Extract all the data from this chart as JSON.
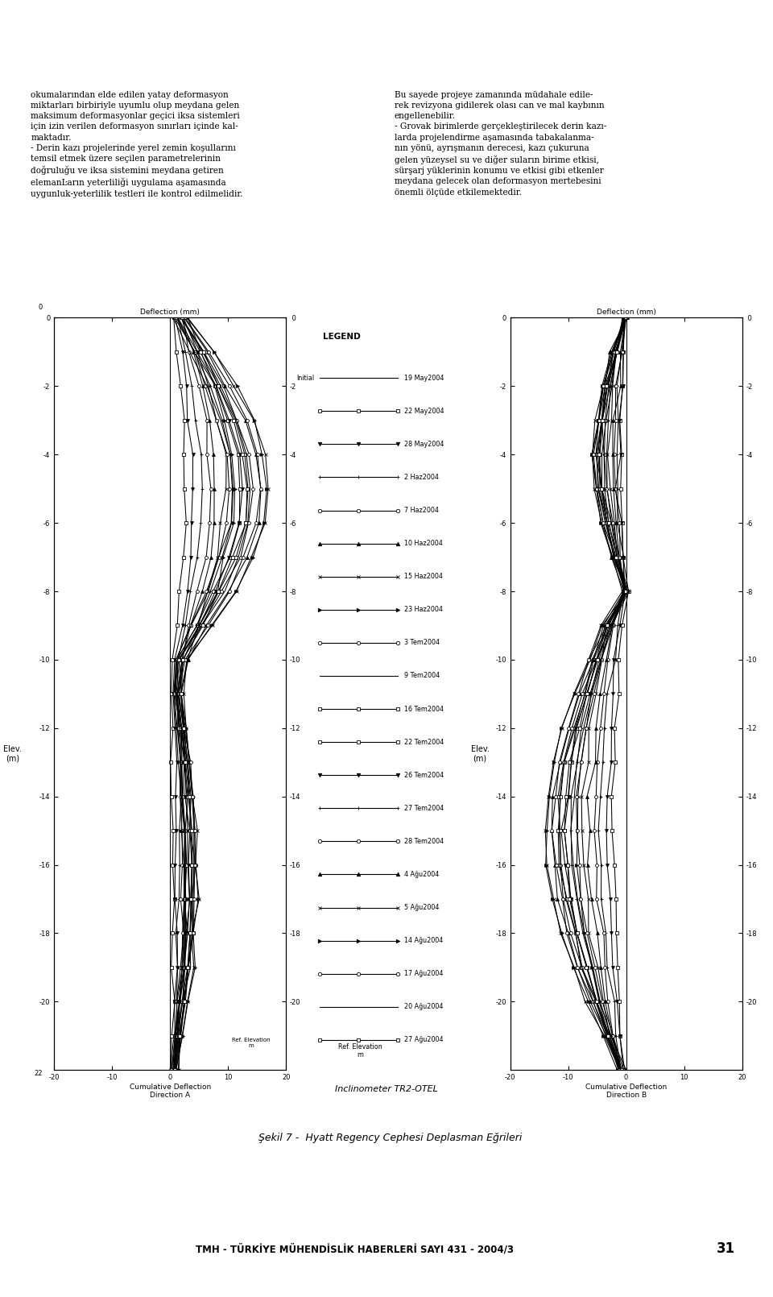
{
  "page_bg": "#ffffff",
  "header_line_color": "#cc0000",
  "tmh_logo_color": "#cc0000",
  "left_text": "okumalarından elde edilen yatay deformasyon\nmiktarları birbiriyle uyumlu olup meydana gelen\nmaksimum deformasyonlar geçici iksa sistemleri\niçin izin verilen deformasyon sınırları içinde kal-\nmaktadır.\n- Derin kazı projelerinde yerel zemin koşullarını\ntemsil etmek üzere seçilen parametrelerinin\ndoğruluğu ve iksa sistemini meydana getiren\nelemanĿarın yeterliliği uygulama aşamasında\nuygunluk-yeterlilik testleri ile kontrol edilmelidir.",
  "right_text": "Bu sayede projeye zamanında müdahale edile-\nrek revizyona gidilerek olası can ve mal kaybının\nengellenebilir.\n- Grovak birimlerde gerçekleştirilecek derin kazı-\nlarda projelendirme aşamasında tabakalanma-\nnın yönü, ayrışmanın derecesi, kazı çukuruna\ngelen yüzeysel su ve diğer suların birime etkisi,\nsürşarj yüklerinin konumu ve etkisi gibi etkenler\nmeydana gelecek olan deformasyon mertebesini\nönemli ölçüde etkilemektedir.",
  "legend_labels": [
    [
      "Initial",
      "19 May2004",
      "none"
    ],
    [
      "",
      "22 May2004",
      "s"
    ],
    [
      "",
      "28 May2004",
      "v"
    ],
    [
      "",
      "2 Haz2004",
      "+"
    ],
    [
      "",
      "7 Haz2004",
      "o"
    ],
    [
      "",
      "10 Haz2004",
      "^"
    ],
    [
      "",
      "15 Haz2004",
      "x"
    ],
    [
      "",
      "23 Haz2004",
      ">"
    ],
    [
      "",
      "3 Tem2004",
      "o"
    ],
    [
      "",
      "9 Tem2004",
      "none"
    ],
    [
      "",
      "16 Tem2004",
      "s"
    ],
    [
      "",
      "22 Tem2004",
      "s"
    ],
    [
      "",
      "26 Tem2004",
      "v"
    ],
    [
      "",
      "27 Tem2004",
      "+"
    ],
    [
      "",
      "28 Tem2004",
      "o"
    ],
    [
      "",
      "4 Ağu2004",
      "^"
    ],
    [
      "",
      "5 Ağu2004",
      "x"
    ],
    [
      "",
      "14 Ağu2004",
      ">"
    ],
    [
      "",
      "17 Ağu2004",
      "o"
    ],
    [
      "",
      "20 Ağu2004",
      "none"
    ],
    [
      "",
      "27 Ağu2004",
      "s"
    ]
  ],
  "xlabel_a": "Cumulative Deflection\nDirection A",
  "xlabel_b": "Cumulative Deflection\nDirection B",
  "top_xlabel": "Deflection (mm)",
  "ylabel": "Elev.\n(m)",
  "figure_caption": "Şekil 7 -  Hyatt Regency Cephesi Deplasman Eğrileri",
  "footer_text": "TMH - TÜRKİYE MÜHENDİSLİK HABERLERİ SAYI 431 - 2004/3",
  "footer_page": "31",
  "inclinometer_label": "Inclinometer TR2-OTEL"
}
